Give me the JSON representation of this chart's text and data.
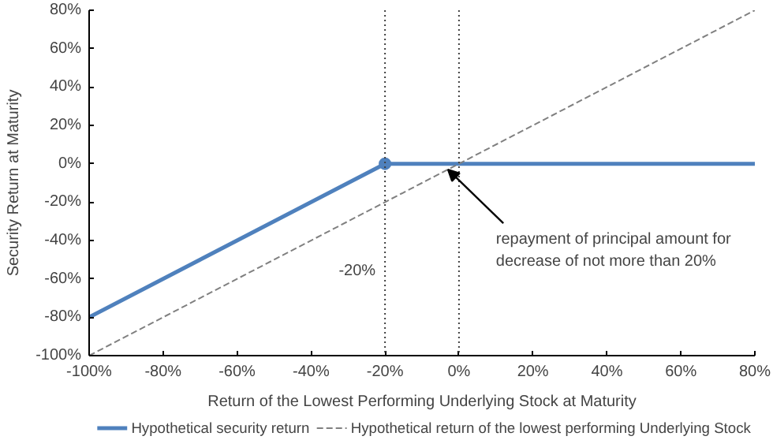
{
  "chart_data": {
    "type": "line",
    "xlabel": "Return of the Lowest Performing Underlying Stock at Maturity",
    "ylabel": "Security Return at Maturity",
    "xlim": [
      -100,
      80
    ],
    "ylim": [
      -100,
      80
    ],
    "xticks": [
      {
        "value": -100,
        "label": "-100%"
      },
      {
        "value": -80,
        "label": "-80%"
      },
      {
        "value": -60,
        "label": "-60%"
      },
      {
        "value": -40,
        "label": "-40%"
      },
      {
        "value": -20,
        "label": "-20%"
      },
      {
        "value": 0,
        "label": "0%"
      },
      {
        "value": 20,
        "label": "20%"
      },
      {
        "value": 40,
        "label": "40%"
      },
      {
        "value": 60,
        "label": "60%"
      },
      {
        "value": 80,
        "label": "80%"
      }
    ],
    "yticks": [
      {
        "value": -100,
        "label": "-100%"
      },
      {
        "value": -80,
        "label": "-80%"
      },
      {
        "value": -60,
        "label": "-60%"
      },
      {
        "value": -40,
        "label": "-40%"
      },
      {
        "value": -20,
        "label": "-20%"
      },
      {
        "value": 0,
        "label": "0%"
      },
      {
        "value": 20,
        "label": "20%"
      },
      {
        "value": 40,
        "label": "40%"
      },
      {
        "value": 60,
        "label": "60%"
      },
      {
        "value": 80,
        "label": "80%"
      }
    ],
    "series": [
      {
        "name": "Hypothetical security return",
        "color": "#4f81bd",
        "x": [
          -100,
          -20,
          80
        ],
        "values": [
          -80,
          0,
          0
        ],
        "line_style": "solid",
        "marker": "none"
      },
      {
        "name": "Hypothetical return of the lowest performing Underlying Stock",
        "color": "#808080",
        "x": [
          -100,
          80
        ],
        "values": [
          -100,
          80
        ],
        "line_style": "dashed",
        "marker": "none"
      },
      {
        "type": "scatter",
        "color": "#4f81bd",
        "x": [
          -20
        ],
        "values": [
          0
        ],
        "marker": "circle"
      }
    ],
    "ref_lines": [
      {
        "axis": "x",
        "value": -20,
        "label": "-20%",
        "line_style": "dotted",
        "color": "#404040"
      },
      {
        "axis": "x",
        "value": 0,
        "line_style": "dotted",
        "color": "#404040"
      }
    ],
    "annotations": [
      {
        "text": "repayment of principal amount for decrease of not more than 20%",
        "x": -3,
        "y": -3
      }
    ],
    "grid": false,
    "legend": "bottom"
  }
}
